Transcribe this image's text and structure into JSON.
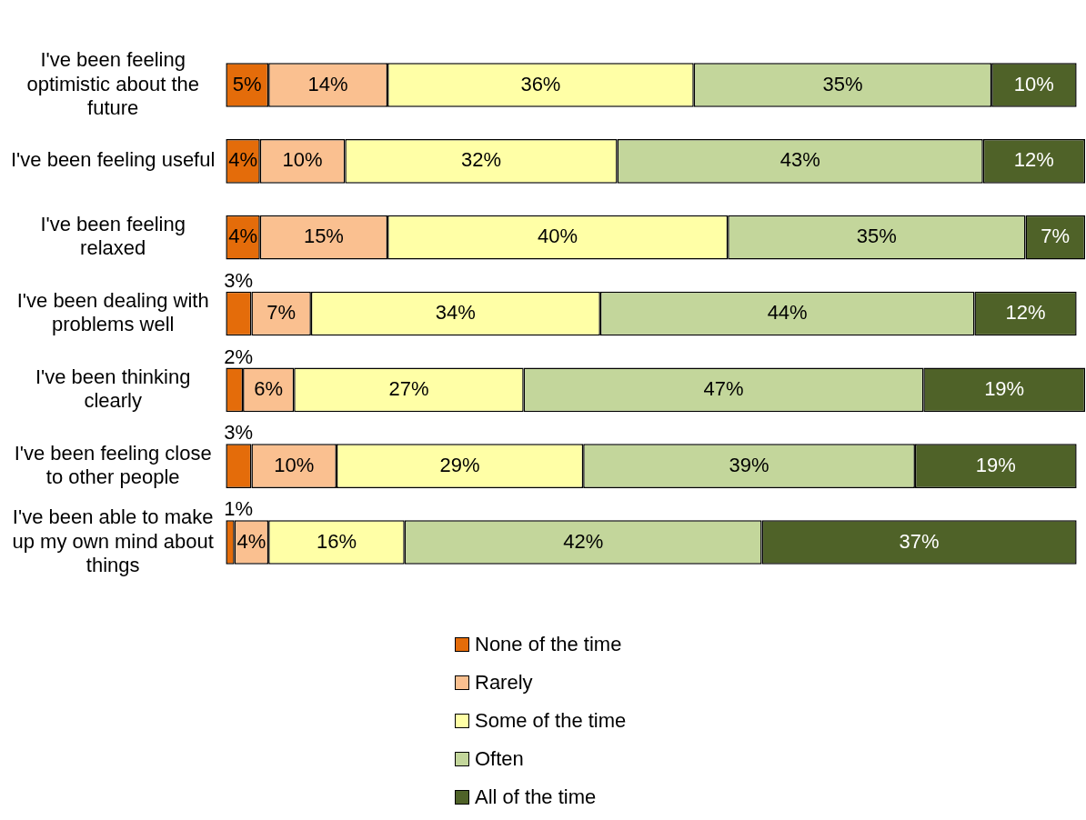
{
  "chart_data": {
    "type": "bar",
    "orientation": "horizontal",
    "stacked": true,
    "legend": "bottom",
    "tick_labels": "y",
    "xlim": [
      0,
      101
    ],
    "categories": [
      "I've been feeling optimistic about the future",
      "I've been feeling useful",
      "I've been feeling relaxed",
      "I've been dealing with problems well",
      "I've been thinking clearly",
      "I've been feeling close to other people",
      "I've been able to make up my own mind about things"
    ],
    "series": [
      {
        "name": "None of the time",
        "color": "#e46c0a",
        "values": [
          5,
          4,
          4,
          3,
          2,
          3,
          1
        ],
        "value_labels": [
          "5%",
          "4%",
          "4%",
          "3%",
          "2%",
          "3%",
          "1%"
        ]
      },
      {
        "name": "Rarely",
        "color": "#fac090",
        "values": [
          14,
          10,
          15,
          7,
          6,
          10,
          4
        ],
        "value_labels": [
          "14%",
          "10%",
          "15%",
          "7%",
          "6%",
          "10%",
          "4%"
        ]
      },
      {
        "name": "Some of the time",
        "color": "#ffffa6",
        "values": [
          36,
          32,
          40,
          34,
          27,
          29,
          16
        ],
        "value_labels": [
          "36%",
          "32%",
          "40%",
          "34%",
          "27%",
          "29%",
          "16%"
        ]
      },
      {
        "name": "Often",
        "color": "#c3d69b",
        "values": [
          35,
          43,
          35,
          44,
          47,
          39,
          42
        ],
        "value_labels": [
          "35%",
          "43%",
          "35%",
          "44%",
          "47%",
          "39%",
          "42%"
        ]
      },
      {
        "name": "All of the time",
        "color": "#4f6228",
        "values": [
          10,
          12,
          7,
          12,
          19,
          19,
          37
        ],
        "value_labels": [
          "10%",
          "12%",
          "7%",
          "12%",
          "19%",
          "19%",
          "37%"
        ]
      }
    ]
  }
}
